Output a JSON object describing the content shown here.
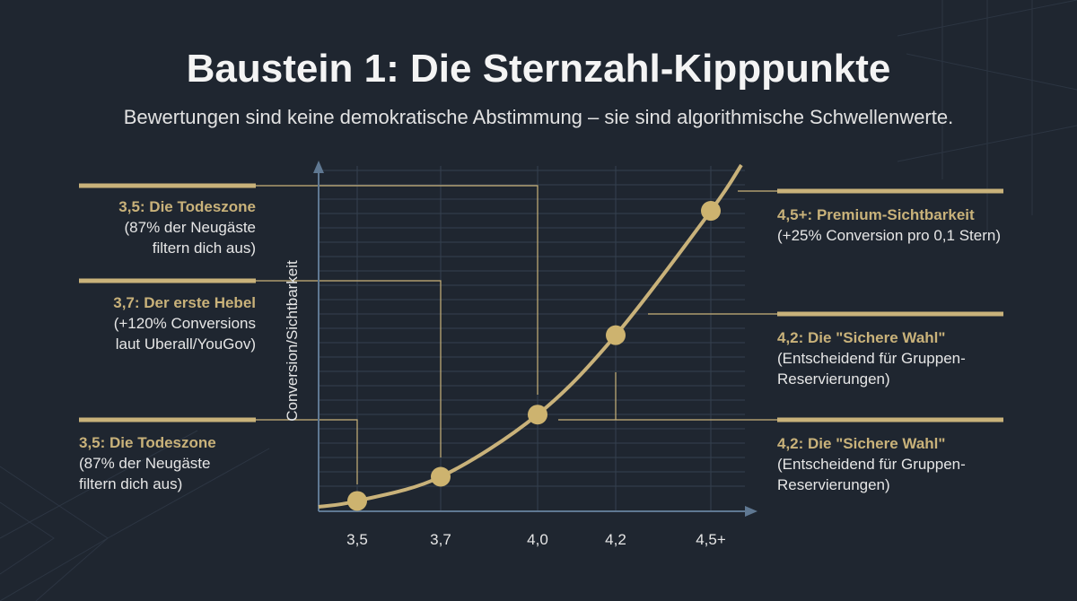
{
  "title": "Baustein 1: Die Sternzahl-Kipppunkte",
  "subtitle": "Bewertungen sind keine demokratische Abstimmung – sie sind algorithmische Schwellenwerte.",
  "colors": {
    "background": "#1f2630",
    "accent": "#c9b27a",
    "axis": "#5f7892",
    "grid": "#34404f"
  },
  "chart_data": {
    "type": "line",
    "ylabel": "Conversion/Sichtbarkeit",
    "xlabel": "",
    "categories": [
      "3,5",
      "3,7",
      "4,0",
      "4,2",
      "4,5+"
    ],
    "x": [
      3.5,
      3.7,
      4.0,
      4.2,
      4.5
    ],
    "values": [
      3,
      10,
      28,
      51,
      87
    ],
    "y_ticks_printed": false,
    "grid": true,
    "curve": "smooth exponential-like rising"
  },
  "annotations": {
    "left": [
      {
        "heading": "3,5: Die Todeszone",
        "line1": "(87% der Neugäste",
        "line2": "filtern dich aus)"
      },
      {
        "heading": "3,7: Der erste Hebel",
        "line1": "(+120% Conversions",
        "line2": "laut Uberall/YouGov)"
      },
      {
        "heading": "3,5: Die Todeszone",
        "line1": "(87% der Neugäste",
        "line2": "filtern dich aus)"
      }
    ],
    "right": [
      {
        "heading": "4,5+: Premium-Sichtbarkeit",
        "line1": "(+25% Conversion pro 0,1 Stern)",
        "line2": ""
      },
      {
        "heading": "4,2: Die \"Sichere Wahl\"",
        "line1": "(Entscheidend für Gruppen-",
        "line2": "Reservierungen)"
      },
      {
        "heading": "4,2: Die \"Sichere Wahl\"",
        "line1": "(Entscheidend für Gruppen-",
        "line2": "Reservierungen)"
      }
    ]
  }
}
